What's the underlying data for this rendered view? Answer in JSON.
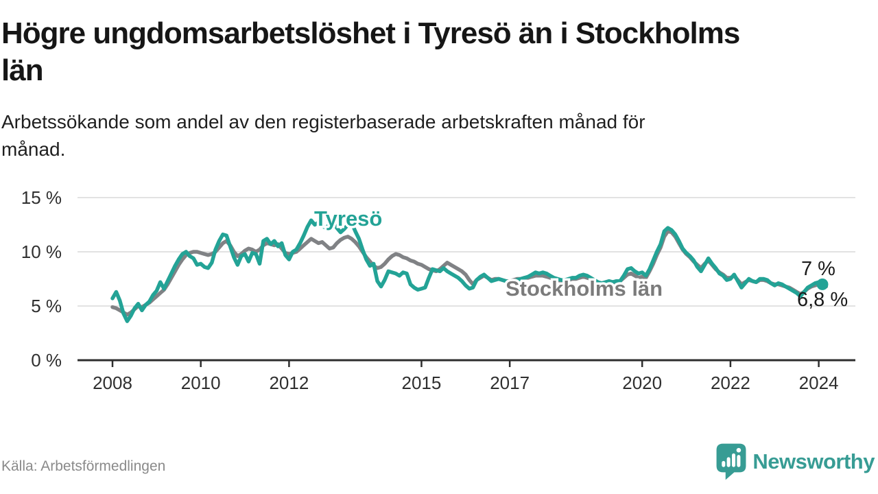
{
  "title": {
    "line1": "Högre ungdomsarbetslöshet i Tyresö än i Stockholms",
    "line2": "län",
    "full": "Högre ungdomsarbetslöshet i Tyresö än i Stockholms län"
  },
  "subtitle": {
    "line1": "Arbetssökande som andel av den registerbaserade arbetskraften månad för",
    "line2": "månad.",
    "full": "Arbetssökande som andel av den registerbaserade arbetskraften månad för månad."
  },
  "source": "Källa: Arbetsförmedlingen",
  "branding": {
    "name": "Newsworthy",
    "icon": "newsworthy-speech-bubble-bar-chart-icon"
  },
  "colors": {
    "tyreso_line": "#23a396",
    "stockholm_line": "#808285",
    "grid": "#d8d8d8",
    "axis": "#2e2e2e",
    "tick_text": "#2f2f2f",
    "end_label_text": "#1a1a1a",
    "stockholm_label_text": "#7b7b7b",
    "brand_teal": "#379c94"
  },
  "chart_data": {
    "type": "line",
    "title": "Högre ungdomsarbetslöshet i Tyresö än i Stockholms län",
    "subtitle": "Arbetssökande som andel av den registerbaserade arbetskraften månad för månad.",
    "x_unit": "month",
    "x_range_start": "2008-01",
    "grid": "horizontal",
    "ylim": [
      0,
      16.8
    ],
    "y_ticks": [
      {
        "value": 15,
        "label": "15 %"
      },
      {
        "value": 10,
        "label": "10 %"
      },
      {
        "value": 5,
        "label": "5 %"
      },
      {
        "value": 0,
        "label": "0 %"
      }
    ],
    "x_ticks": [
      {
        "year": 2008,
        "label": "2008"
      },
      {
        "year": 2010,
        "label": "2010"
      },
      {
        "year": 2012,
        "label": "2012"
      },
      {
        "year": 2015,
        "label": "2015"
      },
      {
        "year": 2017,
        "label": "2017"
      },
      {
        "year": 2020,
        "label": "2020"
      },
      {
        "year": 2022,
        "label": "2022"
      },
      {
        "year": 2024,
        "label": "2024"
      }
    ],
    "series": [
      {
        "name": "Stockholms län",
        "color": "#808285",
        "end_label": "6,8 %",
        "end_value": 6.8,
        "values": [
          4.9,
          4.8,
          4.6,
          4.4,
          4.2,
          4.4,
          4.7,
          5.0,
          4.9,
          5.1,
          5.3,
          5.6,
          5.9,
          6.2,
          6.5,
          7.0,
          7.6,
          8.2,
          8.8,
          9.3,
          9.7,
          9.9,
          10.0,
          10.0,
          9.9,
          9.8,
          9.7,
          9.8,
          10.0,
          10.4,
          10.8,
          11.0,
          10.6,
          10.0,
          9.6,
          9.8,
          10.1,
          10.3,
          10.2,
          10.0,
          10.2,
          10.6,
          10.8,
          10.7,
          10.6,
          10.7,
          10.3,
          9.9,
          9.8,
          9.9,
          10.0,
          10.3,
          10.6,
          10.9,
          11.2,
          11.0,
          10.8,
          10.9,
          10.6,
          10.3,
          10.4,
          10.8,
          11.1,
          11.3,
          11.4,
          11.2,
          10.9,
          10.5,
          10.0,
          9.5,
          9.1,
          8.7,
          8.5,
          8.6,
          8.9,
          9.3,
          9.6,
          9.8,
          9.7,
          9.5,
          9.4,
          9.2,
          9.1,
          8.9,
          8.8,
          8.6,
          8.4,
          8.3,
          8.2,
          8.4,
          8.7,
          9.0,
          8.8,
          8.6,
          8.4,
          8.2,
          7.9,
          7.4,
          7.0,
          7.4,
          7.6,
          7.8,
          7.6,
          7.4,
          7.5,
          7.5,
          7.4,
          7.3,
          7.3,
          7.4,
          7.5,
          7.5,
          7.6,
          7.6,
          7.7,
          7.8,
          7.8,
          7.8,
          7.7,
          7.6,
          7.5,
          7.4,
          7.3,
          7.3,
          7.4,
          7.5,
          7.5,
          7.6,
          7.7,
          7.6,
          7.5,
          7.3,
          7.1,
          7.0,
          7.1,
          7.2,
          7.1,
          7.2,
          7.3,
          7.6,
          7.9,
          8.0,
          7.8,
          7.6,
          7.7,
          7.6,
          8.2,
          8.9,
          9.7,
          10.4,
          11.4,
          11.9,
          11.8,
          11.4,
          10.8,
          10.2,
          9.8,
          9.5,
          9.1,
          8.8,
          8.5,
          8.9,
          9.2,
          8.8,
          8.4,
          8.1,
          7.9,
          7.6,
          7.6,
          7.8,
          7.4,
          7.0,
          7.2,
          7.4,
          7.3,
          7.2,
          7.4,
          7.4,
          7.3,
          7.1,
          7.0,
          7.0,
          6.9,
          6.8,
          6.7,
          6.5,
          6.3,
          6.1,
          6.3,
          6.6,
          6.8,
          6.9,
          7.0,
          6.9,
          6.8
        ]
      },
      {
        "name": "Tyresö",
        "color": "#23a396",
        "end_label": "7 %",
        "end_value": 7.0,
        "end_dot": true,
        "values": [
          5.7,
          6.3,
          5.5,
          4.3,
          3.6,
          4.1,
          4.8,
          5.2,
          4.6,
          5.1,
          5.4,
          6.0,
          6.4,
          7.2,
          6.6,
          7.3,
          8.0,
          8.7,
          9.3,
          9.8,
          10.0,
          9.6,
          9.4,
          8.8,
          8.9,
          8.6,
          8.5,
          9.0,
          10.2,
          11.0,
          11.6,
          11.5,
          10.5,
          9.5,
          8.8,
          9.6,
          9.8,
          9.1,
          9.9,
          9.8,
          8.9,
          11.0,
          11.2,
          10.7,
          11.0,
          10.5,
          10.8,
          9.7,
          9.3,
          10.0,
          10.2,
          10.8,
          11.5,
          12.3,
          12.9,
          12.5,
          12.7,
          12.4,
          12.2,
          12.5,
          12.7,
          12.2,
          11.8,
          12.1,
          12.5,
          12.7,
          11.9,
          11.2,
          10.2,
          9.3,
          8.7,
          8.9,
          7.3,
          6.8,
          7.4,
          8.2,
          8.1,
          8.0,
          7.8,
          8.1,
          8.0,
          7.0,
          6.7,
          6.5,
          6.6,
          6.7,
          7.6,
          8.4,
          8.3,
          8.2,
          8.5,
          8.2,
          8.0,
          7.8,
          7.6,
          7.3,
          6.9,
          6.6,
          6.7,
          7.4,
          7.7,
          7.9,
          7.6,
          7.3,
          7.4,
          7.5,
          7.4,
          7.3,
          7.2,
          7.3,
          7.4,
          7.5,
          7.6,
          7.7,
          7.9,
          8.1,
          8.0,
          8.1,
          8.0,
          7.8,
          7.6,
          7.5,
          7.4,
          7.4,
          7.5,
          7.6,
          7.6,
          7.8,
          7.9,
          7.8,
          7.6,
          7.4,
          7.2,
          7.1,
          7.2,
          7.3,
          7.2,
          7.3,
          7.3,
          7.8,
          8.4,
          8.5,
          8.2,
          8.0,
          8.1,
          7.8,
          8.4,
          9.2,
          10.0,
          10.7,
          11.9,
          12.2,
          12.0,
          11.6,
          11.0,
          10.3,
          9.9,
          9.6,
          9.2,
          8.6,
          8.2,
          8.8,
          9.4,
          8.9,
          8.5,
          8.0,
          7.8,
          7.4,
          7.5,
          7.9,
          7.3,
          6.7,
          7.1,
          7.5,
          7.3,
          7.2,
          7.5,
          7.5,
          7.4,
          7.1,
          6.9,
          7.1,
          7.0,
          6.8,
          6.6,
          6.4,
          6.2,
          5.9,
          6.3,
          6.7,
          6.9,
          7.1,
          7.2,
          7.0
        ]
      }
    ],
    "annotations": {
      "tyreso_series_label": "Tyresö",
      "stockholm_series_label": "Stockholms län",
      "tyreso_end_label": "7 %",
      "stockholm_end_label": "6,8 %"
    },
    "legend_position": "inline-labels"
  }
}
